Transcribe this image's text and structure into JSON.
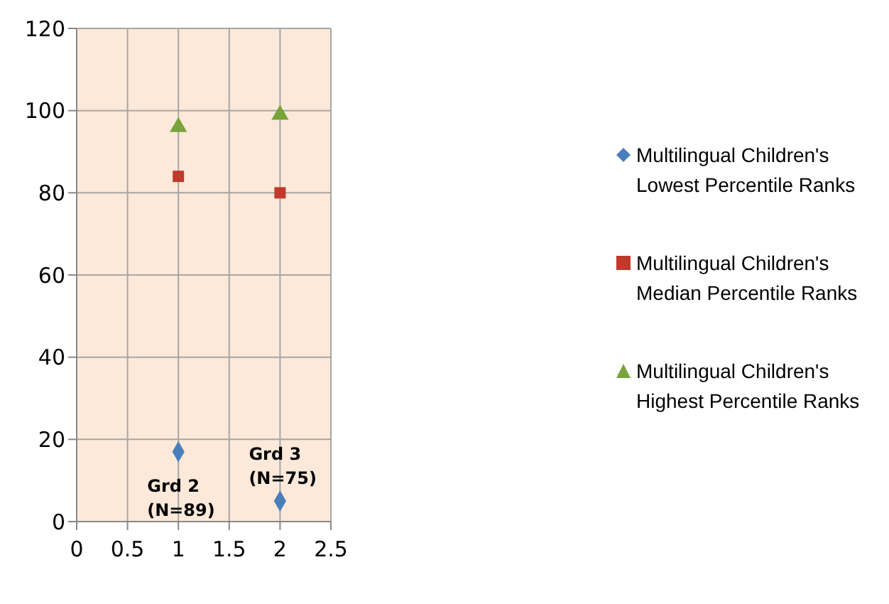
{
  "chart_data": {
    "type": "scatter",
    "x": [
      1,
      2
    ],
    "series": [
      {
        "name": "Multilingual Children's Lowest Percentile Ranks",
        "color": "#4a7ebb",
        "marker": "diamond",
        "values": [
          17,
          5
        ]
      },
      {
        "name": "Multilingual Children's Median Percentile Ranks",
        "color": "#c0392b",
        "marker": "square",
        "values": [
          84,
          80
        ]
      },
      {
        "name": "Multilingual Children's Highest Percentile Ranks",
        "color": "#77a33a",
        "marker": "triangle",
        "values": [
          96,
          99
        ]
      }
    ],
    "xlim": [
      0,
      2.5
    ],
    "xticks": [
      0,
      0.5,
      1,
      1.5,
      2,
      2.5
    ],
    "ylim": [
      0,
      120
    ],
    "yticks": [
      0,
      20,
      40,
      60,
      80,
      100,
      120
    ],
    "grid": true,
    "legend": "right",
    "annotations": [
      {
        "text": "Grd 2\n(N=89)",
        "x": 1,
        "y": 17
      },
      {
        "text": "Grd 3\n(N=75)",
        "x": 2,
        "y": 5
      }
    ]
  }
}
